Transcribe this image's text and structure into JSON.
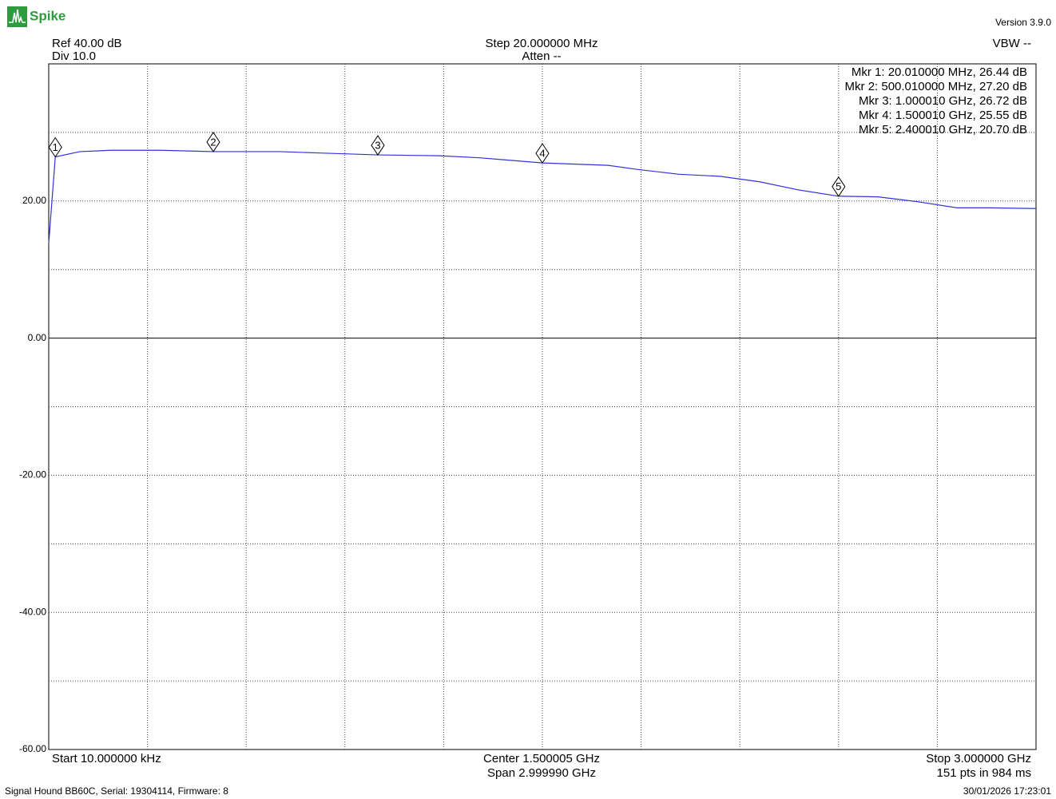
{
  "app": {
    "logo": "Spike",
    "version": "Version 3.9.0"
  },
  "header": {
    "ref": "Ref 40.00 dB",
    "div": "Div 10.0",
    "step": "Step 20.000000 MHz",
    "atten": "Atten --",
    "vbw": "VBW --"
  },
  "footer": {
    "start": "Start 10.000000 kHz",
    "center": "Center 1.500005 GHz",
    "span": "Span 2.999990 GHz",
    "stop": "Stop 3.000000 GHz",
    "points": "151 pts in 984 ms",
    "device": "Signal Hound BB60C, Serial: 19304114, Firmware: 8",
    "timestamp": "30/01/2026 17:23:01"
  },
  "chart_data": {
    "type": "line",
    "xlim": [
      1e-05,
      3.0
    ],
    "ylim": [
      -60,
      40
    ],
    "yticks": [
      {
        "value": 20,
        "label": "20.00"
      },
      {
        "value": 0,
        "label": "0.00"
      },
      {
        "value": -20,
        "label": "-20.00"
      },
      {
        "value": -40,
        "label": "-40.00"
      },
      {
        "value": -60,
        "label": "-60.00"
      }
    ],
    "y_gridlines": [
      30,
      20,
      10,
      0,
      -10,
      -20,
      -30,
      -40,
      -50
    ],
    "x_gridlines": [
      0.3,
      0.6,
      0.9,
      1.2,
      1.5,
      1.8,
      2.1,
      2.4,
      2.7
    ],
    "grid": true,
    "series": [
      {
        "name": "Trace",
        "color": "#3232dc",
        "x": [
          1e-05,
          0.02,
          0.095,
          0.19,
          0.34,
          0.5,
          0.7,
          0.825,
          1.0,
          1.187,
          1.31,
          1.5,
          1.7,
          1.79,
          1.915,
          2.04,
          2.16,
          2.28,
          2.4,
          2.52,
          2.64,
          2.76,
          2.86,
          3.0
        ],
        "values": [
          13.8,
          26.44,
          27.2,
          27.4,
          27.4,
          27.2,
          27.2,
          27.0,
          26.72,
          26.6,
          26.3,
          25.55,
          25.2,
          24.6,
          23.9,
          23.6,
          22.8,
          21.6,
          20.7,
          20.6,
          19.9,
          19.0,
          19.0,
          18.9
        ]
      }
    ],
    "markers": [
      {
        "label": "1",
        "x": 0.02001,
        "value": 26.44,
        "text": "Mkr 1: 20.010000 MHz, 26.44 dB"
      },
      {
        "label": "2",
        "x": 0.50001,
        "value": 27.2,
        "text": "Mkr 2: 500.010000 MHz, 27.20 dB"
      },
      {
        "label": "3",
        "x": 1.00001,
        "value": 26.72,
        "text": "Mkr 3: 1.000010 GHz, 26.72 dB"
      },
      {
        "label": "4",
        "x": 1.50001,
        "value": 25.55,
        "text": "Mkr 4: 1.500010 GHz, 25.55 dB"
      },
      {
        "label": "5",
        "x": 2.40001,
        "value": 20.7,
        "text": "Mkr 5: 2.400010 GHz, 20.70 dB"
      }
    ]
  }
}
